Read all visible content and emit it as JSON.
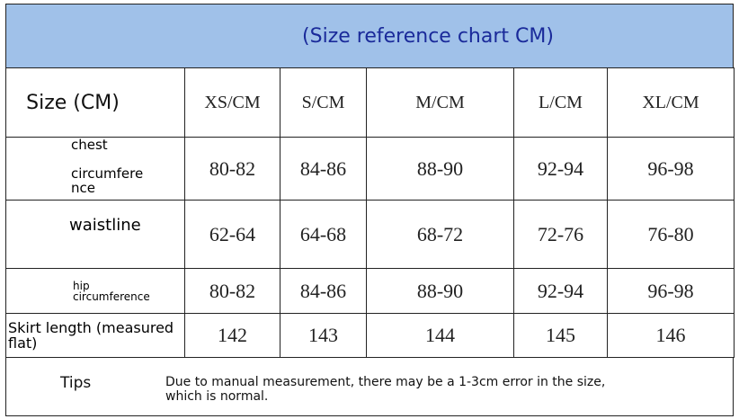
{
  "title": "(Size reference chart CM)",
  "table": {
    "header": [
      "Size (CM)",
      "XS/CM",
      "S/CM",
      "M/CM",
      "L/CM",
      "XL/CM"
    ],
    "rows": [
      {
        "label": [
          "chest",
          "circumfere",
          "nce"
        ],
        "values": [
          "80-82",
          "84-86",
          "88-90",
          "92-94",
          "96-98"
        ]
      },
      {
        "label": [
          "waistline"
        ],
        "values": [
          "62-64",
          "64-68",
          "68-72",
          "72-76",
          "76-80"
        ]
      },
      {
        "label": [
          "hip",
          "circumference"
        ],
        "values": [
          "80-82",
          "84-86",
          "88-90",
          "92-94",
          "96-98"
        ]
      },
      {
        "label": [
          "Skirt length (measured",
          "flat)"
        ],
        "values": [
          "142",
          "143",
          "144",
          "145",
          "146"
        ]
      }
    ]
  },
  "tips": {
    "label": "Tips",
    "text": "Due to manual measurement, there may be a 1-3cm error in the size, which is normal."
  }
}
